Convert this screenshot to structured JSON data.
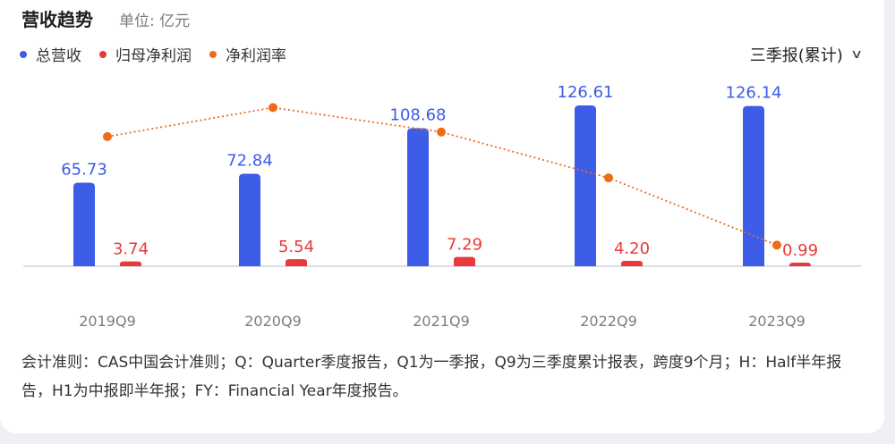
{
  "header": {
    "title": "营收趋势",
    "unit": "单位: 亿元"
  },
  "legend": [
    {
      "label": "总营收",
      "color": "#3d5ce8"
    },
    {
      "label": "归母净利润",
      "color": "#e83a3a"
    },
    {
      "label": "净利润率",
      "color": "#ee6b1a"
    }
  ],
  "period_selector": {
    "label": "三季报(累计)",
    "icon": "chevron-down-icon"
  },
  "chart_data": {
    "type": "bar",
    "categories": [
      "2019Q9",
      "2020Q9",
      "2021Q9",
      "2022Q9",
      "2023Q9"
    ],
    "series": [
      {
        "name": "总营收",
        "type": "bar",
        "color": "#3d5ce8",
        "values": [
          65.73,
          72.84,
          108.68,
          126.61,
          126.14
        ]
      },
      {
        "name": "归母净利润",
        "type": "bar",
        "color": "#e83a3a",
        "values": [
          3.74,
          5.54,
          7.29,
          4.2,
          0.99
        ]
      },
      {
        "name": "净利润率",
        "type": "line",
        "style": "dotted",
        "color": "#ee6b1a",
        "values_relative": [
          0.79,
          0.98,
          0.82,
          0.52,
          0.08
        ]
      }
    ],
    "ylim": [
      0,
      130
    ],
    "grid": false,
    "legend_position": "top-left"
  },
  "footnote": "会计准则：CAS中国会计准则；Q：Quarter季度报告，Q1为一季报，Q9为三季度累计报表，跨度9个月；H：Half半年报告，H1为中报即半年报；FY：Financial Year年度报告。"
}
